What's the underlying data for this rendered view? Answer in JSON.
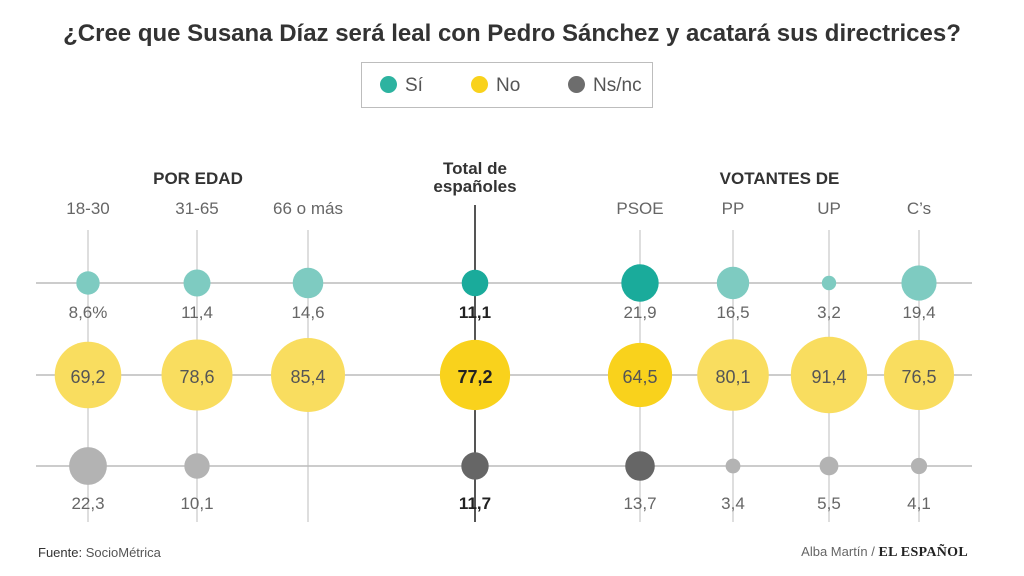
{
  "title": "¿Cree que Susana Díaz será leal con Pedro Sánchez y acatará sus directrices?",
  "legend": [
    {
      "label": "Sí",
      "color": "#2db3a0"
    },
    {
      "label": "No",
      "color": "#f9d21c"
    },
    {
      "label": "Ns/nc",
      "color": "#6d6d6d"
    }
  ],
  "chart_data": {
    "type": "scatter",
    "title": "¿Cree que Susana Díaz será leal con Pedro Sánchez y acatará sus directrices?",
    "groups": [
      {
        "label": "POR EDAD",
        "columns": [
          "18-30",
          "31-65",
          "66 o más"
        ]
      },
      {
        "label": "Total de españoles",
        "columns": [
          ""
        ]
      },
      {
        "label": "VOTANTES DE",
        "columns": [
          "PSOE",
          "PP",
          "UP",
          "C’s"
        ]
      }
    ],
    "categories": [
      "18-30",
      "31-65",
      "66 o más",
      "Total de españoles",
      "PSOE",
      "PP",
      "UP",
      "C’s"
    ],
    "series": [
      {
        "name": "Sí",
        "values": [
          8.6,
          11.4,
          14.6,
          11.1,
          21.9,
          16.5,
          3.2,
          19.4
        ],
        "labels": [
          "8,6%",
          "11,4",
          "14,6",
          "11,1",
          "21,9",
          "16,5",
          "3,2",
          "19,4"
        ]
      },
      {
        "name": "No",
        "values": [
          69.2,
          78.6,
          85.4,
          77.2,
          64.5,
          80.1,
          91.4,
          76.5
        ],
        "labels": [
          "69,2",
          "78,6",
          "85,4",
          "77,2",
          "64,5",
          "80,1",
          "91,4",
          "76,5"
        ]
      },
      {
        "name": "Ns/nc",
        "values": [
          22.3,
          10.1,
          0,
          11.7,
          13.7,
          3.4,
          5.5,
          4.1
        ],
        "labels": [
          "22,3",
          "10,1",
          "",
          "11,7",
          "13,7",
          "3,4",
          "5,5",
          "4,1"
        ]
      }
    ],
    "colors": {
      "si": "#7ecbc1",
      "si_highlight": "#1aab9b",
      "no": "#f9dd5f",
      "no_highlight": "#f9d21c",
      "nsnc": "#b3b3b3",
      "nsnc_highlight": "#666666"
    },
    "highlight_columns": [
      "Total de españoles",
      "PSOE"
    ]
  },
  "footer": {
    "source_label": "Fuente:",
    "source": "SocioMétrica",
    "author": "Alba Martín /",
    "logo": "EL ESPAÑOL"
  }
}
